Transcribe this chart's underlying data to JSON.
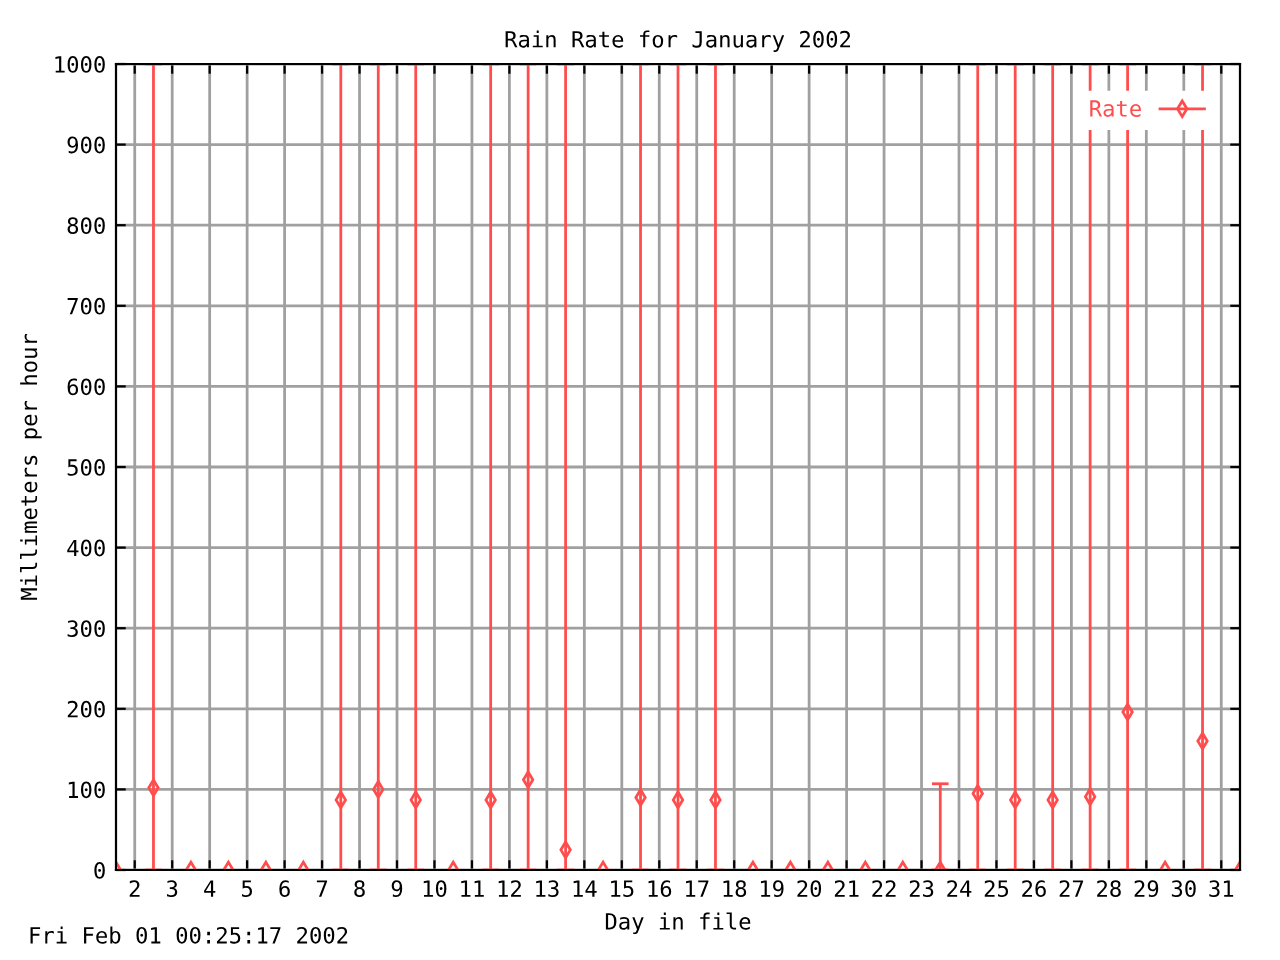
{
  "chart_data": {
    "type": "scatter",
    "title": "Rain Rate for January 2002",
    "xlabel": "Day in file",
    "ylabel": "Millimeters per hour",
    "annotations": [
      "Fri Feb 01 00:25:17 2002"
    ],
    "xlim": [
      1.5,
      31.5
    ],
    "xticks": [
      2,
      3,
      4,
      5,
      6,
      7,
      8,
      9,
      10,
      11,
      12,
      13,
      14,
      15,
      16,
      17,
      18,
      19,
      20,
      21,
      22,
      23,
      24,
      25,
      26,
      27,
      28,
      29,
      30,
      31
    ],
    "ylim": [
      0,
      1000
    ],
    "yticks": [
      0,
      100,
      200,
      300,
      400,
      500,
      600,
      700,
      800,
      900,
      1000
    ],
    "grid": true,
    "legend": "top right",
    "marker": "diamond",
    "series": [
      {
        "name": "Rate",
        "color": "#ff4d4d",
        "x": [
          1.5,
          2.5,
          3.5,
          4.5,
          5.5,
          6.5,
          7.5,
          8.5,
          9.5,
          10.5,
          11.5,
          12.5,
          13.5,
          14.5,
          15.5,
          16.5,
          17.5,
          18.5,
          19.5,
          20.5,
          21.5,
          22.5,
          23.5,
          24.5,
          25.5,
          26.5,
          27.5,
          28.5,
          29.5,
          30.5,
          31.5
        ],
        "values": [
          0,
          102,
          0,
          0,
          0,
          0,
          87,
          100,
          87,
          0,
          87,
          112,
          25,
          0,
          90,
          87,
          87,
          0,
          0,
          0,
          0,
          0,
          0,
          95,
          87,
          87,
          91,
          196,
          0,
          160,
          0
        ],
        "errors": [
          null,
          [
            0,
            1000
          ],
          null,
          null,
          null,
          null,
          [
            0,
            1000
          ],
          [
            0,
            1000
          ],
          [
            0,
            1000
          ],
          null,
          [
            0,
            1000
          ],
          [
            0,
            1000
          ],
          [
            0,
            1000
          ],
          null,
          [
            0,
            1000
          ],
          [
            0,
            1000
          ],
          [
            0,
            1000
          ],
          null,
          null,
          null,
          null,
          null,
          [
            0,
            107
          ],
          [
            0,
            1000
          ],
          [
            0,
            1000
          ],
          [
            0,
            1000
          ],
          [
            0,
            1000
          ],
          [
            0,
            1000
          ],
          null,
          [
            0,
            1000
          ],
          null
        ]
      }
    ]
  }
}
